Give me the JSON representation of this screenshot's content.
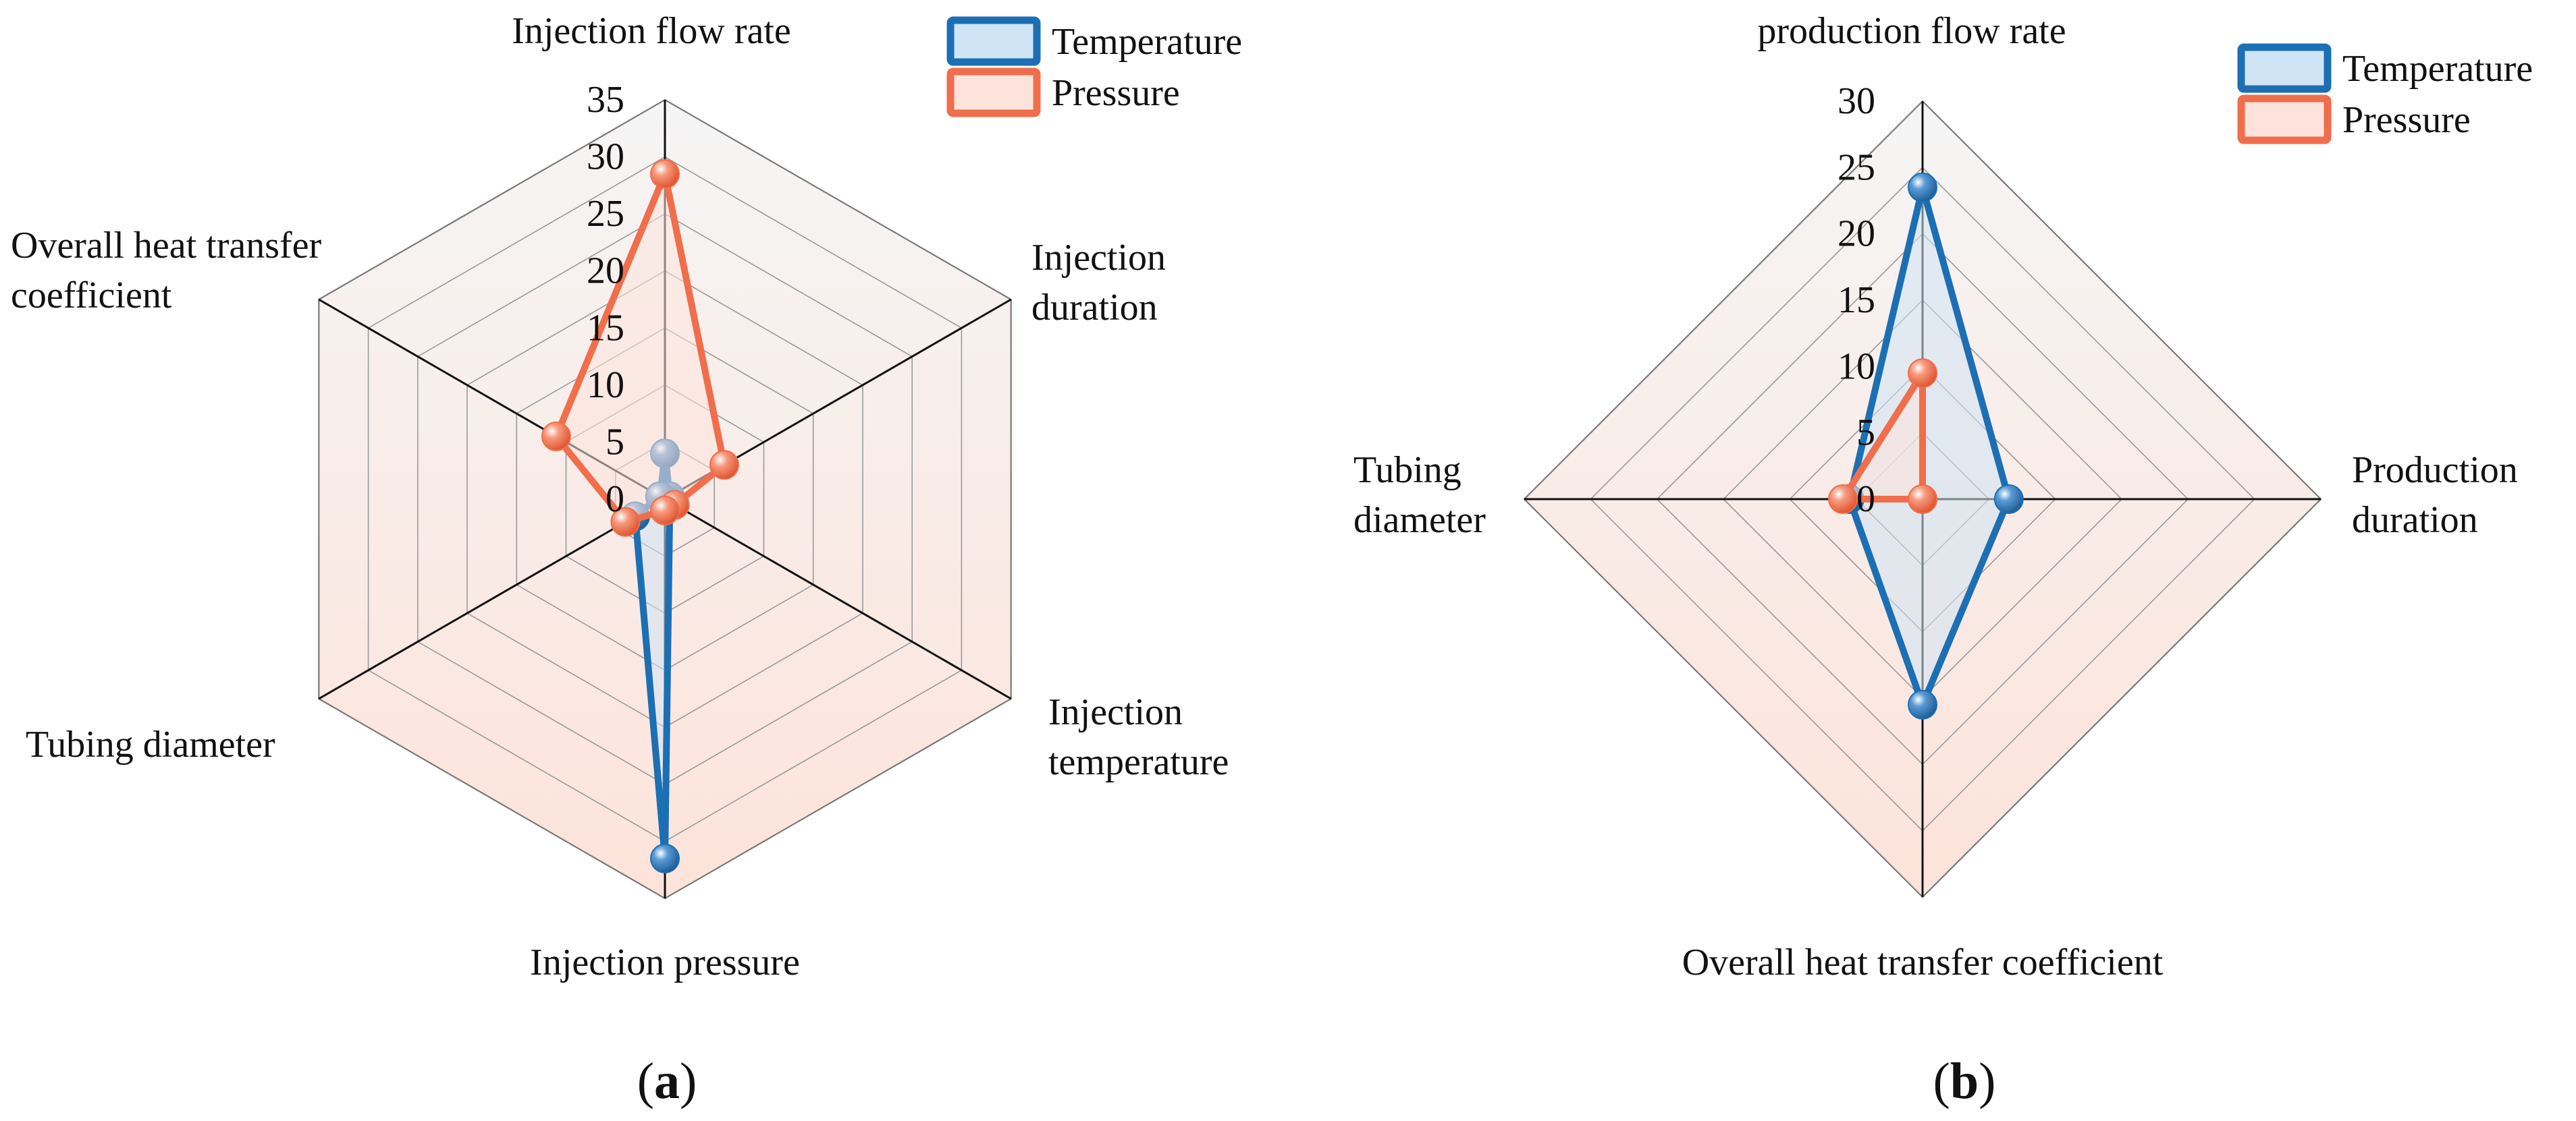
{
  "chart_data": [
    {
      "type": "radar",
      "panel_label": "a",
      "axes": [
        "Injection flow rate",
        "Injection duration",
        "Injection temperature",
        "Injection pressure",
        "Tubing diameter",
        "Overall heat transfer coefficient"
      ],
      "axis_label_lines": [
        [
          "Injection flow rate"
        ],
        [
          "Injection",
          "duration"
        ],
        [
          "Injection",
          "temperature"
        ],
        [
          "Injection pressure"
        ],
        [
          "Tubing diameter"
        ],
        [
          "Overall heat transfer",
          "coefficient"
        ]
      ],
      "range": [
        0,
        35
      ],
      "ticks": [
        "0",
        "5",
        "10",
        "15",
        "20",
        "25",
        "30",
        "35"
      ],
      "series": [
        {
          "name": "Temperature",
          "values": [
            4,
            0.5,
            0.5,
            31.5,
            3,
            0.5
          ]
        },
        {
          "name": "Pressure",
          "values": [
            28.5,
            6,
            1,
            1,
            4,
            11
          ]
        }
      ],
      "legend": [
        "Temperature",
        "Pressure"
      ],
      "legend_position": "top-right"
    },
    {
      "type": "radar",
      "panel_label": "b",
      "axes": [
        "production flow rate",
        "Production duration",
        "Overall heat transfer coefficient",
        "Tubing diameter"
      ],
      "axis_label_lines": [
        [
          "production flow rate"
        ],
        [
          "Production",
          "duration"
        ],
        [
          "Overall heat transfer coefficient"
        ],
        [
          "Tubing",
          "diameter"
        ]
      ],
      "range": [
        0,
        30
      ],
      "ticks": [
        "0",
        "5",
        "10",
        "15",
        "20",
        "25",
        "30"
      ],
      "series": [
        {
          "name": "Temperature",
          "values": [
            23.5,
            6.5,
            15.5,
            5.5
          ]
        },
        {
          "name": "Pressure",
          "values": [
            9.5,
            0,
            0,
            6
          ]
        }
      ],
      "legend": [
        "Temperature",
        "Pressure"
      ],
      "legend_position": "top-right"
    }
  ],
  "colors": {
    "temperature_stroke": "#1c6fb3",
    "temperature_fill": "#cfe4f4",
    "pressure_stroke": "#f06e4b",
    "pressure_fill": "#fde3dc",
    "grid_top": "#f5f5f5",
    "grid_bottom": "#fde3da"
  }
}
